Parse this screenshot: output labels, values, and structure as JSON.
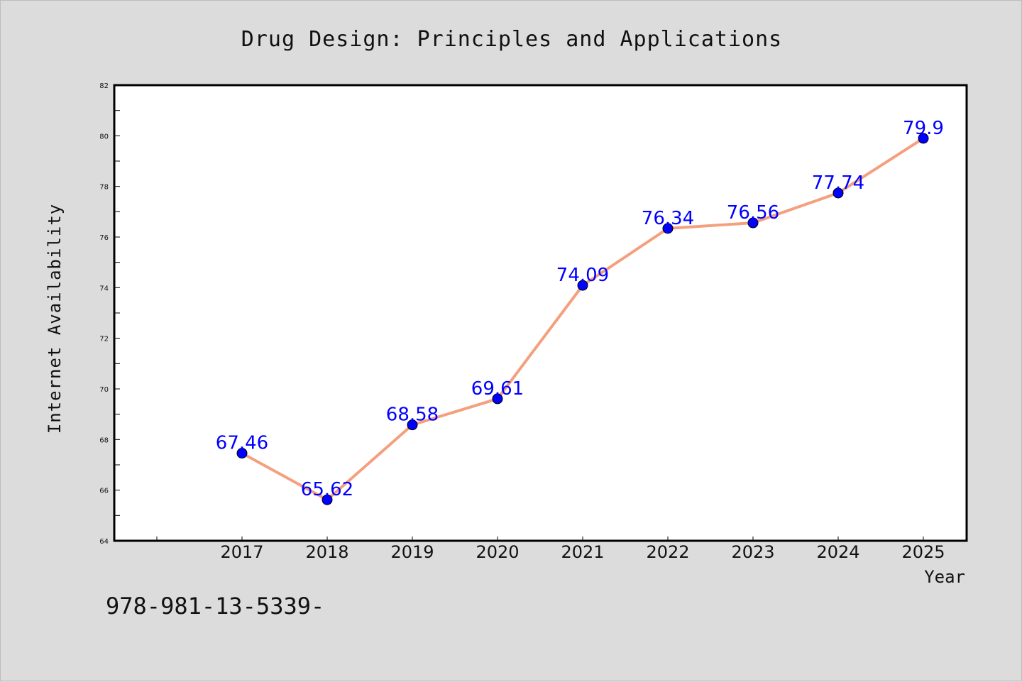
{
  "footer_text": "978-981-13-5339-",
  "chart_data": {
    "type": "line",
    "title": "Drug Design: Principles and Applications",
    "xlabel": "Year",
    "ylabel": "Internet Availability",
    "categories": [
      "2017",
      "2018",
      "2019",
      "2020",
      "2021",
      "2022",
      "2023",
      "2024",
      "2025"
    ],
    "series": [
      {
        "values": [
          67.46,
          65.62,
          68.58,
          69.61,
          74.09,
          76.34,
          76.56,
          77.74,
          79.9
        ],
        "labels": [
          "67.46",
          "65.62",
          "68.58",
          "69.61",
          "74.09",
          "76.34",
          "76.56",
          "77.74",
          "79.9"
        ],
        "line_color": "#f4a07f",
        "marker_color": "#0000ff"
      }
    ],
    "ylim": [
      64,
      82
    ],
    "yticks": [
      "64",
      "66",
      "68",
      "70",
      "72",
      "74",
      "76",
      "78",
      "80",
      "82"
    ],
    "grid": false,
    "legend": "none"
  }
}
